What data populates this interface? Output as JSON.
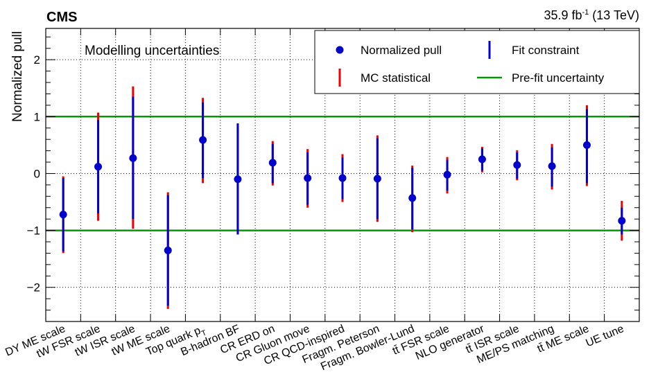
{
  "header": {
    "experiment": "CMS",
    "lumi_value": "35.9 fb",
    "lumi_exp": "-1",
    "lumi_energy": " (13 TeV)"
  },
  "chart_data": {
    "type": "scatter",
    "title": "",
    "ylabel": "Normalized pull",
    "xlabel": "",
    "annotation": "Modelling uncertainties",
    "ylim": [
      -2.6,
      2.55
    ],
    "yticks": [
      -2,
      -1,
      0,
      1,
      2
    ],
    "ytick_labels": [
      "−2",
      "−1",
      "0",
      "1",
      "2"
    ],
    "grid": true,
    "legend_position": "top-right",
    "legend": [
      {
        "label": "Normalized pull",
        "marker": "point",
        "color": "#0000cc"
      },
      {
        "label": "Fit constraint",
        "marker": "vbar",
        "color": "#0000cc"
      },
      {
        "label": "MC statistical",
        "marker": "vbar",
        "color": "#ee0000"
      },
      {
        "label": "Pre-fit uncertainty",
        "marker": "hline",
        "color": "#009900"
      }
    ],
    "prefit_band": [
      -1,
      1
    ],
    "categories": [
      {
        "label": "DY ME scale",
        "label_sub": ""
      },
      {
        "label": "tW FSR scale",
        "label_sub": ""
      },
      {
        "label": "tW ISR scale",
        "label_sub": ""
      },
      {
        "label": "tW ME scale",
        "label_sub": ""
      },
      {
        "label": "Top quark p",
        "label_sub": "T"
      },
      {
        "label": "B-hadron BF",
        "label_sub": ""
      },
      {
        "label": "CR ERD on",
        "label_sub": ""
      },
      {
        "label": "CR Gluon move",
        "label_sub": ""
      },
      {
        "label": "CR QCD-inspired",
        "label_sub": ""
      },
      {
        "label": "Fragm. Peterson",
        "label_sub": ""
      },
      {
        "label": "Fragm. Bowler-Lund",
        "label_sub": ""
      },
      {
        "label": "tt̄ FSR scale",
        "label_sub": ""
      },
      {
        "label": "NLO generator",
        "label_sub": ""
      },
      {
        "label": "tt̄ ISR scale",
        "label_sub": ""
      },
      {
        "label": "ME/PS matching",
        "label_sub": ""
      },
      {
        "label": "tt̄ ME scale",
        "label_sub": ""
      },
      {
        "label": "UE tune",
        "label_sub": ""
      }
    ],
    "series": [
      {
        "name": "Normalized pull",
        "values": [
          -0.72,
          0.12,
          0.27,
          -1.35,
          0.59,
          -0.1,
          0.19,
          -0.08,
          -0.08,
          -0.09,
          -0.43,
          -0.02,
          0.25,
          0.15,
          0.13,
          0.5,
          -0.83
        ],
        "fit_constraint_low": [
          -1.37,
          -0.7,
          -0.8,
          -2.32,
          -0.08,
          -1.07,
          -0.17,
          -0.55,
          -0.45,
          -0.8,
          -0.98,
          -0.3,
          0.05,
          -0.09,
          -0.23,
          -0.17,
          -1.07
        ],
        "fit_constraint_high": [
          -0.08,
          0.94,
          1.35,
          -0.38,
          1.25,
          0.88,
          0.52,
          0.37,
          0.28,
          0.62,
          0.1,
          0.24,
          0.44,
          0.37,
          0.46,
          1.13,
          -0.6
        ],
        "mc_stat_low": [
          -1.4,
          -0.83,
          -0.97,
          -2.38,
          -0.17,
          -1.07,
          -0.21,
          -0.6,
          -0.5,
          -0.85,
          -1.03,
          -0.35,
          0.02,
          -0.12,
          -0.28,
          -0.22,
          -1.18
        ],
        "mc_stat_high": [
          -0.05,
          1.07,
          1.53,
          -0.33,
          1.33,
          0.88,
          0.57,
          0.43,
          0.34,
          0.67,
          0.14,
          0.29,
          0.47,
          0.41,
          0.52,
          1.2,
          -0.48
        ]
      }
    ]
  }
}
